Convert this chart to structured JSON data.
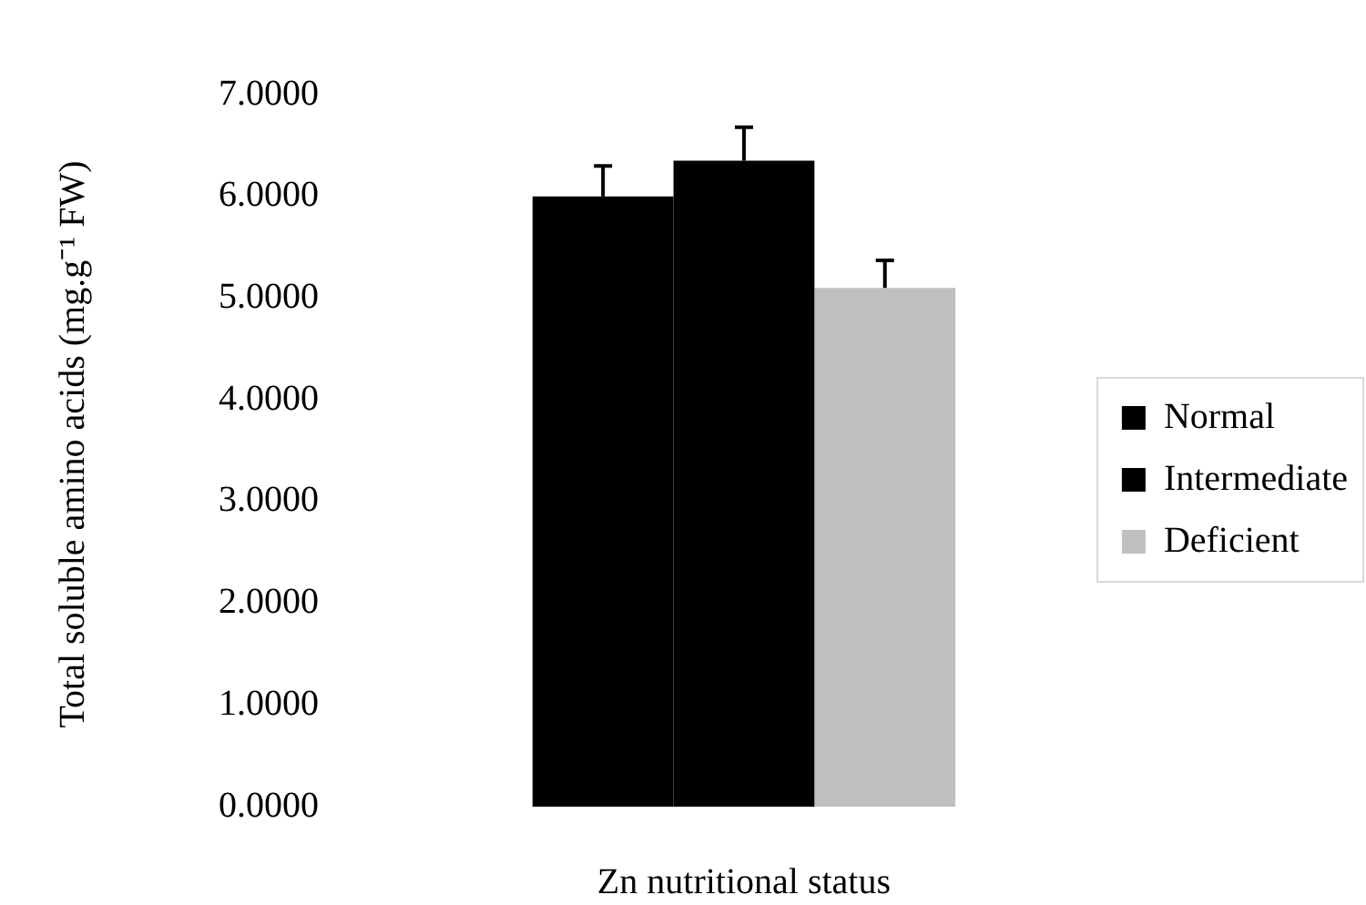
{
  "chart_data": {
    "type": "bar",
    "ylabel": "Total soluble amino acids (mg.g⁻¹ FW)",
    "xlabel": "Zn nutritional status",
    "categories": [
      null
    ],
    "series": [
      {
        "name": "Normal",
        "color": "#000000",
        "values": [
          6.0
        ],
        "errors": [
          0.3
        ]
      },
      {
        "name": "Intermediate",
        "color": "#000000",
        "values": [
          6.35
        ],
        "errors": [
          0.33
        ]
      },
      {
        "name": "Deficient",
        "color": "#c0c0c0",
        "values": [
          5.1
        ],
        "errors": [
          0.27
        ]
      }
    ],
    "ylim": [
      0,
      7
    ],
    "yticks": [
      {
        "value": 0,
        "label": "0.0000"
      },
      {
        "value": 1,
        "label": "1.0000"
      },
      {
        "value": 2,
        "label": "2.0000"
      },
      {
        "value": 3,
        "label": "3.0000"
      },
      {
        "value": 4,
        "label": "4.0000"
      },
      {
        "value": 5,
        "label": "5.0000"
      },
      {
        "value": 6,
        "label": "6.0000"
      },
      {
        "value": 7,
        "label": "7.0000"
      }
    ],
    "grid": false,
    "legend": "right"
  }
}
